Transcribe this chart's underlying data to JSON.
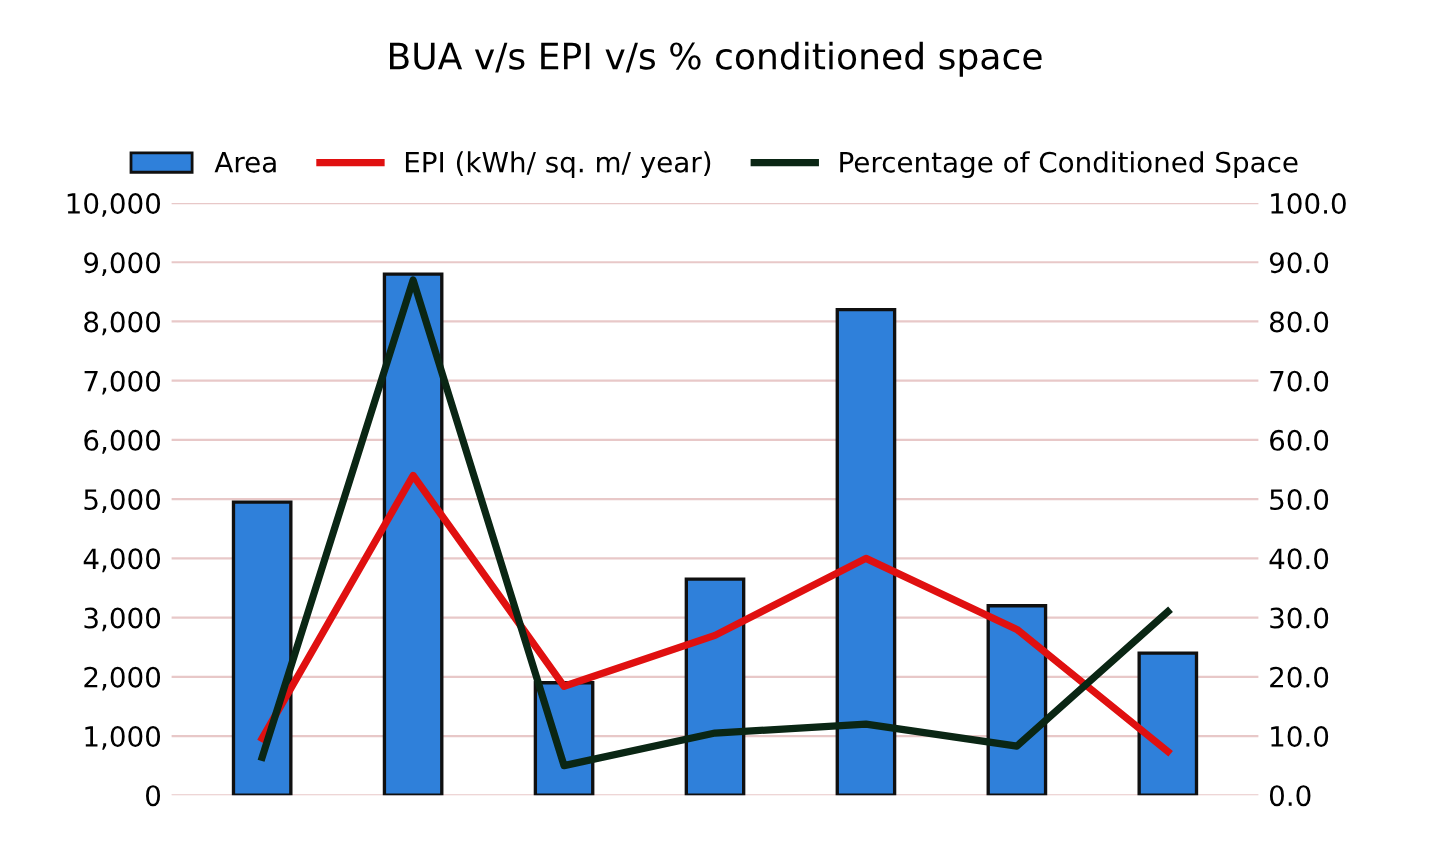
{
  "chart_data": {
    "type": "bar",
    "title": "BUA v/s EPI v/s % conditioned space",
    "categories": [
      null,
      null,
      null,
      null,
      null,
      null,
      null
    ],
    "series": [
      {
        "name": "Area",
        "color": "#2f80da",
        "values": [
          4950,
          8800,
          1900,
          3650,
          8200,
          3200,
          2400
        ]
      },
      {
        "name": "EPI (kWh/ sq. m/ year)",
        "type": "line",
        "axis": "y2",
        "color": "#e01010",
        "values": [
          9.6,
          54,
          18.4,
          27,
          40,
          28,
          7.4
        ]
      },
      {
        "name": "Percentage of Conditioned Space",
        "type": "line",
        "axis": "y2",
        "color": "#0a2614",
        "values": [
          6.4,
          87,
          5,
          10.5,
          12,
          8.3,
          31
        ]
      }
    ],
    "ylim": [
      0,
      10000
    ],
    "yticks": [
      {
        "value": 0,
        "label": "0"
      },
      {
        "value": 1000,
        "label": "1,000"
      },
      {
        "value": 2000,
        "label": "2,000"
      },
      {
        "value": 3000,
        "label": "3,000"
      },
      {
        "value": 4000,
        "label": "4,000"
      },
      {
        "value": 5000,
        "label": "5,000"
      },
      {
        "value": 6000,
        "label": "6,000"
      },
      {
        "value": 7000,
        "label": "7,000"
      },
      {
        "value": 8000,
        "label": "8,000"
      },
      {
        "value": 9000,
        "label": "9,000"
      },
      {
        "value": 10000,
        "label": "10,000"
      }
    ],
    "y2lim": [
      0,
      100
    ],
    "y2ticks": [
      {
        "value": 0,
        "label": "0.0"
      },
      {
        "value": 10,
        "label": "10.0"
      },
      {
        "value": 20,
        "label": "20.0"
      },
      {
        "value": 30,
        "label": "30.0"
      },
      {
        "value": 40,
        "label": "40.0"
      },
      {
        "value": 50,
        "label": "50.0"
      },
      {
        "value": 60,
        "label": "60.0"
      },
      {
        "value": 70,
        "label": "70.0"
      },
      {
        "value": 80,
        "label": "80.0"
      },
      {
        "value": 90,
        "label": "90.0"
      },
      {
        "value": 100,
        "label": "100.0"
      }
    ],
    "grid": "y",
    "legend": "top",
    "line_style": "solid",
    "marker": "none",
    "tick_labels": "y"
  }
}
